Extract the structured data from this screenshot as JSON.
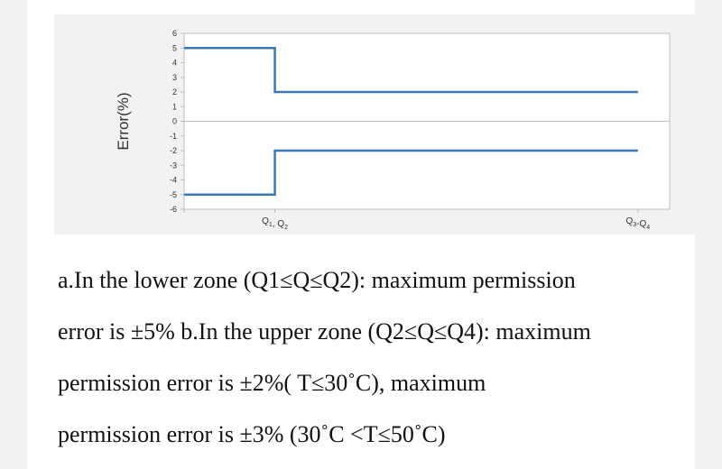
{
  "chart_data": {
    "type": "line",
    "title": "",
    "ylabel": "Error(%)",
    "xlabel": "",
    "ylim": [
      -6,
      6
    ],
    "yticks": [
      6,
      5,
      4,
      3,
      2,
      1,
      0,
      -1,
      -2,
      -3,
      -4,
      -5,
      -6
    ],
    "x_positions": [
      0,
      1,
      5
    ],
    "x_tick_labels": [
      {
        "x": 1,
        "base1": "Q",
        "sub1": "1",
        "sep": ", ",
        "base2": "Q",
        "sub2": "2"
      },
      {
        "x": 5,
        "base1": "Q",
        "sub1": "3",
        "sep": "-",
        "base2": "Q",
        "sub2": "4"
      }
    ],
    "xlim": [
      0,
      5.35
    ],
    "grid": false,
    "zero_line": true,
    "series": [
      {
        "points": [
          [
            0,
            5
          ],
          [
            1,
            5
          ],
          [
            1,
            2
          ],
          [
            5,
            2
          ]
        ],
        "color": "#3b76b6"
      },
      {
        "points": [
          [
            0,
            -5
          ],
          [
            1,
            -5
          ],
          [
            1,
            -2
          ],
          [
            5,
            -2
          ]
        ],
        "color": "#3b76b6"
      }
    ]
  },
  "caption": {
    "lines": [
      "a.In the lower zone (Q1≤Q≤Q2): maximum permission",
      "error is ±5% b.In the upper zone (Q2≤Q≤Q4): maximum",
      "permission error is ±2%( T≤30˚C), maximum",
      "permission error is ±3% (30˚C <T≤50˚C)"
    ]
  }
}
